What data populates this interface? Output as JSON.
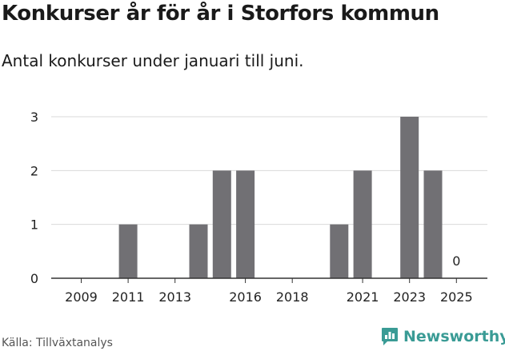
{
  "title": "Konkurser år för år i Storfors kommun",
  "subtitle": "Antal konkurser under januari till juni.",
  "source": "Källa: Tillväxtanalys",
  "brand": {
    "name": "Newsworthy",
    "icon": "newsworthy-logo-icon",
    "color": "#3a9b95"
  },
  "chart_data": {
    "type": "bar",
    "categories": [
      "2009",
      "2010",
      "2011",
      "2012",
      "2013",
      "2014",
      "2015",
      "2016",
      "2017",
      "2018",
      "2019",
      "2020",
      "2021",
      "2022",
      "2023",
      "2024",
      "2025"
    ],
    "values": [
      0,
      0,
      1,
      0,
      0,
      1,
      2,
      2,
      0,
      0,
      0,
      1,
      2,
      0,
      3,
      2,
      0
    ],
    "x_tick_labels": [
      "2009",
      "2011",
      "2013",
      "2016",
      "2018",
      "2021",
      "2023",
      "2025"
    ],
    "y_ticks": [
      0,
      1,
      2,
      3
    ],
    "ylim": [
      0,
      3
    ],
    "data_labels": [
      {
        "category": "2025",
        "text": "0"
      }
    ],
    "bar_color": "#717074",
    "grid": true,
    "legend": "none",
    "xlabel": "",
    "ylabel": ""
  }
}
